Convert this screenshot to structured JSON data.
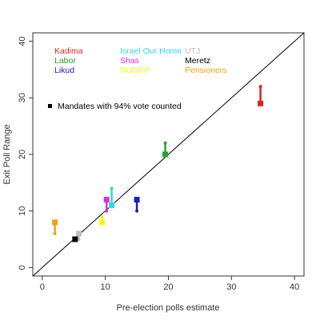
{
  "chart_data": {
    "type": "scatter",
    "xlabel": "Pre-election polls estimate",
    "ylabel": "Exit Poll Range",
    "xlim": [
      -1.5,
      41.5
    ],
    "ylim": [
      -1.5,
      41.5
    ],
    "xticks": [
      "0",
      "10",
      "20",
      "30",
      "40"
    ],
    "yticks": [
      "0",
      "10",
      "20",
      "30",
      "40"
    ],
    "reference_line": "y = x",
    "marker_note": "Mandates with 94% vote counted",
    "series": [
      {
        "name": "Kadima",
        "color": "#d62728",
        "x": 34.6,
        "exit_poll_range": [
          29,
          32
        ],
        "counted": 29
      },
      {
        "name": "Labor",
        "color": "#2ca02c",
        "x": 19.5,
        "exit_poll_range": [
          20,
          22
        ],
        "counted": 20
      },
      {
        "name": "Likud",
        "color": "#1f1fb4",
        "x": 15.0,
        "exit_poll_range": [
          10,
          12
        ],
        "counted": 12
      },
      {
        "name": "Israel Our Home",
        "color": "#33d6e6",
        "x": 11.0,
        "exit_poll_range": [
          11,
          14
        ],
        "counted": 11
      },
      {
        "name": "Shas",
        "color": "#d633d6",
        "x": 10.2,
        "exit_poll_range": [
          10,
          12
        ],
        "counted": 12
      },
      {
        "name": "NUNRP",
        "color": "#f5f51f",
        "x": 9.5,
        "exit_poll_range": [
          8,
          9
        ],
        "counted": 8
      },
      {
        "name": "UTJ",
        "color": "#bfbfbf",
        "x": 5.8,
        "exit_poll_range": [
          5,
          6
        ],
        "counted": 6
      },
      {
        "name": "Meretz",
        "color": "#000000",
        "x": 5.2,
        "exit_poll_range": [
          5,
          5
        ],
        "counted": 5
      },
      {
        "name": "Pensioners",
        "color": "#f0a020",
        "x": 2.0,
        "exit_poll_range": [
          6,
          8
        ],
        "counted": 8
      }
    ],
    "legend_columns": [
      [
        "Kadima",
        "Labor",
        "Likud"
      ],
      [
        "Israel Our Home",
        "Shas",
        "NUNRP"
      ],
      [
        "UTJ",
        "Meretz",
        "Pensioners"
      ]
    ]
  }
}
